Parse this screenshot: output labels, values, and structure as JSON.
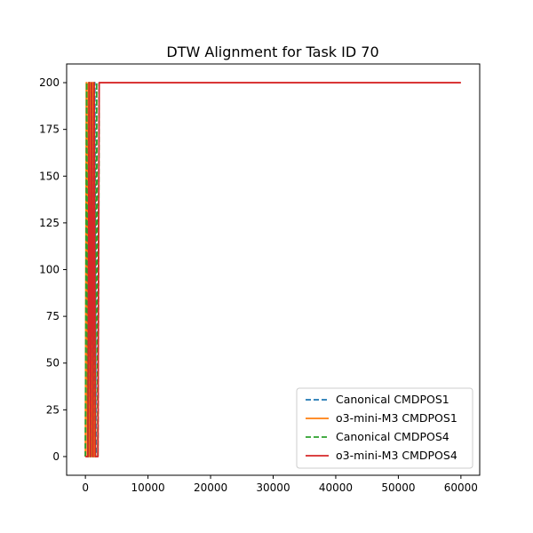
{
  "chart_data": {
    "type": "line",
    "title": "DTW Alignment for Task ID 70",
    "xlabel": "",
    "ylabel": "",
    "xlim": [
      -3000,
      63000
    ],
    "ylim": [
      -10,
      210
    ],
    "xticks": [
      0,
      10000,
      20000,
      30000,
      40000,
      50000,
      60000
    ],
    "yticks": [
      0,
      25,
      50,
      75,
      100,
      125,
      150,
      175,
      200
    ],
    "grid": false,
    "legend_position": "lower-right",
    "series": [
      {
        "name": "Canonical CMDPOS1",
        "color": "#1f77b4",
        "style": "dashed",
        "x": [
          0,
          300,
          500,
          700,
          900,
          1100,
          1300,
          1500,
          1700
        ],
        "y": [
          0,
          200,
          0,
          200,
          0,
          200,
          0,
          200,
          0
        ]
      },
      {
        "name": "o3-mini-M3 CMDPOS1",
        "color": "#ff7f0e",
        "style": "solid",
        "x": [
          0,
          150,
          300,
          450,
          600,
          800,
          1000,
          1200,
          1400,
          1600
        ],
        "y": [
          0,
          200,
          0,
          200,
          0,
          200,
          0,
          200,
          0,
          0
        ]
      },
      {
        "name": "Canonical CMDPOS4",
        "color": "#2ca02c",
        "style": "dashed",
        "x": [
          0,
          200,
          400,
          600,
          800,
          1000,
          1200,
          1400,
          1600,
          1800,
          2000,
          2200
        ],
        "y": [
          0,
          200,
          0,
          200,
          0,
          200,
          0,
          200,
          0,
          200,
          0,
          200
        ]
      },
      {
        "name": "o3-mini-M3 CMDPOS4",
        "color": "#d62728",
        "style": "solid",
        "x": [
          0,
          400,
          600,
          800,
          1000,
          1200,
          1400,
          1600,
          1800,
          2000,
          2200,
          60000
        ],
        "y": [
          0,
          0,
          200,
          0,
          200,
          0,
          200,
          0,
          0,
          0,
          200,
          200
        ]
      }
    ]
  }
}
